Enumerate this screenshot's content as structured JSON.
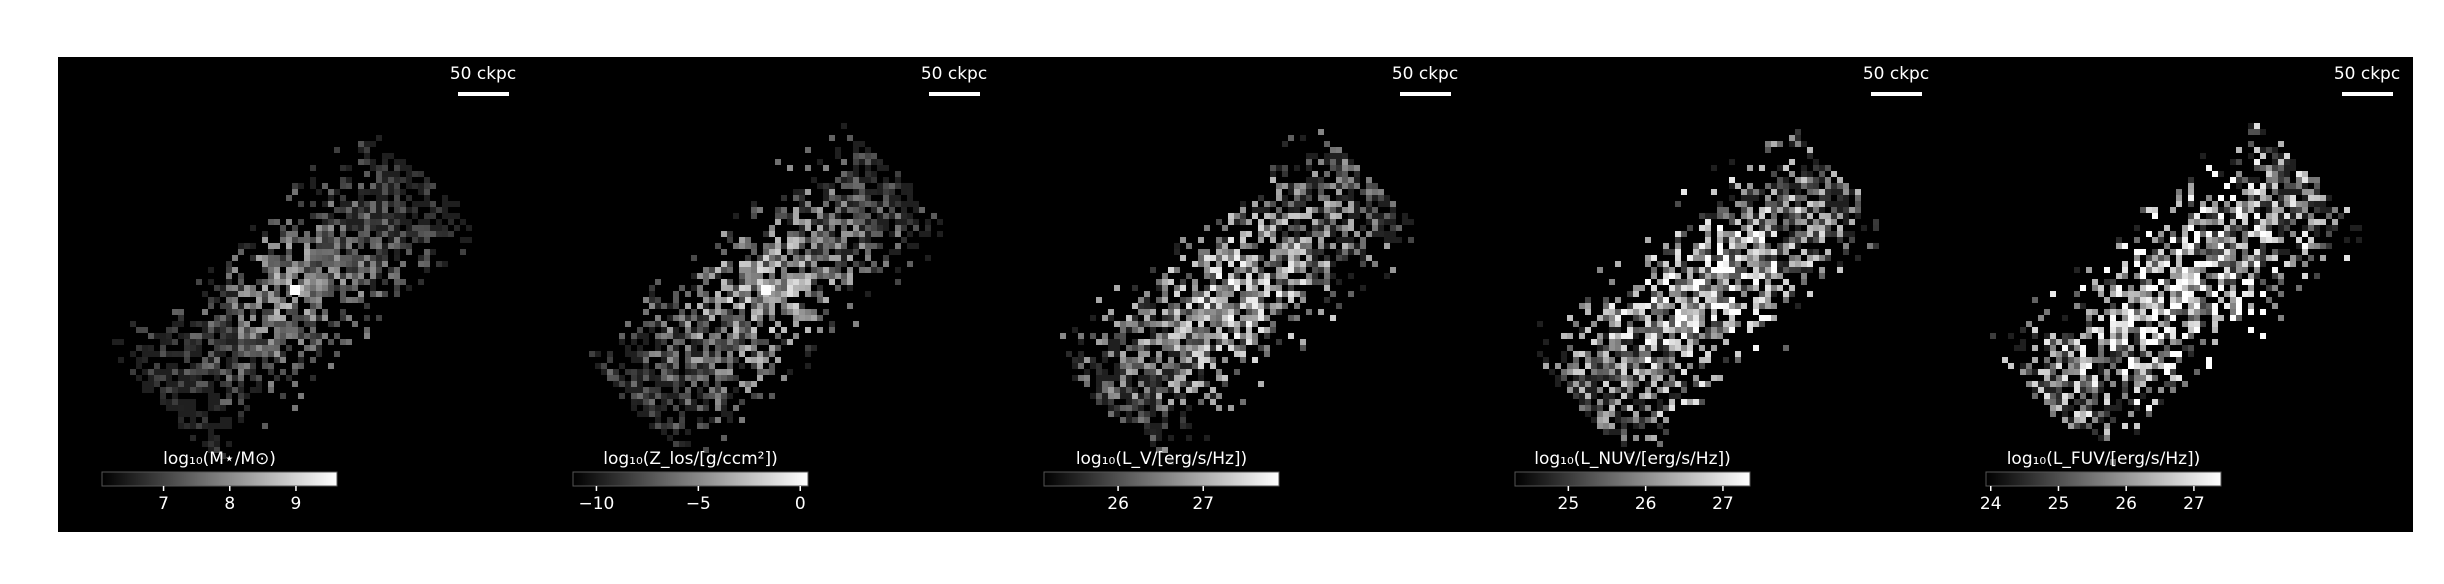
{
  "chart_data": [
    {
      "type": "image",
      "scale_bar_label": "50 ckpc",
      "colorbar_label": "log₁₀(M⋆/M⊙)",
      "clim": [
        6.07,
        9.62
      ],
      "cticks": [
        7,
        8,
        9
      ]
    },
    {
      "type": "image",
      "scale_bar_label": "50 ckpc",
      "colorbar_label": "log₁₀(Z_los/[g/ccm²])",
      "clim": [
        -11.15,
        0.38
      ],
      "cticks": [
        {
          "value": -10,
          "label": "−10"
        },
        {
          "value": -5,
          "label": "−5"
        },
        0
      ]
    },
    {
      "type": "image",
      "scale_bar_label": "50 ckpc",
      "colorbar_label": "log₁₀(L_V/[erg/s/Hz])",
      "clim": [
        25.13,
        27.89
      ],
      "cticks": [
        26,
        27
      ]
    },
    {
      "type": "image",
      "scale_bar_label": "50 ckpc",
      "colorbar_label": "log₁₀(L_NUV/[erg/s/Hz])",
      "clim": [
        24.31,
        27.35
      ],
      "cticks": [
        25,
        26,
        27
      ]
    },
    {
      "type": "image",
      "scale_bar_label": "50 ckpc",
      "colorbar_label": "log₁₀(L_FUV/[erg/s/Hz])",
      "clim": [
        23.93,
        27.4
      ],
      "cticks": [
        24,
        25,
        26,
        27
      ]
    }
  ]
}
